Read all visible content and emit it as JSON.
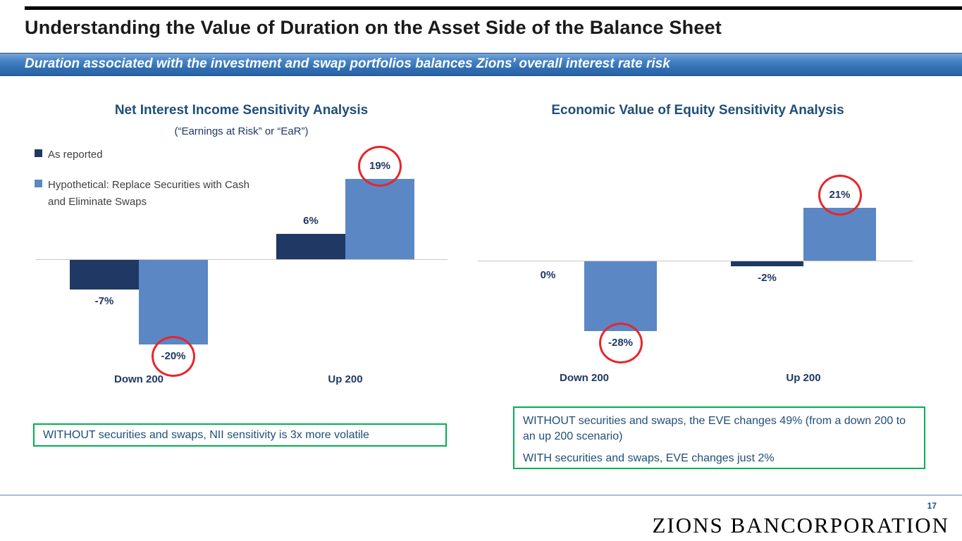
{
  "slide": {
    "title": "Understanding the Value of Duration on the Asset Side of the Balance Sheet",
    "banner": "Duration associated with the investment and swap portfolios balances Zions’ overall interest rate risk",
    "page_number": "17",
    "logo": "ZIONS BANCORPORATION"
  },
  "colors": {
    "dark_series": "#1F3864",
    "light_series": "#5B87C5",
    "title_navy": "#1F4E79",
    "green_accent": "#00B050",
    "highlight_red": "#E8252A",
    "banner_blue": "#2F6DB3"
  },
  "chart_data": [
    {
      "type": "bar",
      "title": "Net Interest Income Sensitivity Analysis",
      "subtitle": "(“Earnings at Risk” or “EaR”)",
      "categories": [
        "Down 200",
        "Up 200"
      ],
      "series": [
        {
          "name": "As reported",
          "values": [
            -7,
            6
          ],
          "labels": [
            "-7%",
            "6%"
          ],
          "circled": [
            false,
            false
          ]
        },
        {
          "name": "Hypothetical: Replace Securities with Cash and Eliminate Swaps",
          "values": [
            -20,
            19
          ],
          "labels": [
            "-20%",
            "19%"
          ],
          "circled": [
            true,
            true
          ]
        }
      ],
      "ylabel": "",
      "xlabel": "",
      "ylim": [
        -25,
        25
      ],
      "grid": false,
      "legend_position": "top-left"
    },
    {
      "type": "bar",
      "title": "Economic Value of Equity Sensitivity Analysis",
      "subtitle": "",
      "categories": [
        "Down 200",
        "Up 200"
      ],
      "series": [
        {
          "name": "As reported",
          "values": [
            0,
            -2
          ],
          "labels": [
            "0%",
            "-2%"
          ],
          "circled": [
            false,
            false
          ]
        },
        {
          "name": "Hypothetical: Replace Securities with Cash and Eliminate Swaps",
          "values": [
            -28,
            21
          ],
          "labels": [
            "-28%",
            "21%"
          ],
          "circled": [
            true,
            true
          ]
        }
      ],
      "ylabel": "",
      "xlabel": "",
      "ylim": [
        -35,
        30
      ],
      "grid": false,
      "legend_position": "none"
    }
  ],
  "callouts": {
    "left": [
      "WITHOUT securities and swaps, NII sensitivity is 3x more volatile"
    ],
    "right": [
      "WITHOUT securities and swaps, the EVE changes 49% (from a down 200 to an up 200 scenario)",
      "WITH securities and swaps, EVE changes just 2%"
    ]
  }
}
